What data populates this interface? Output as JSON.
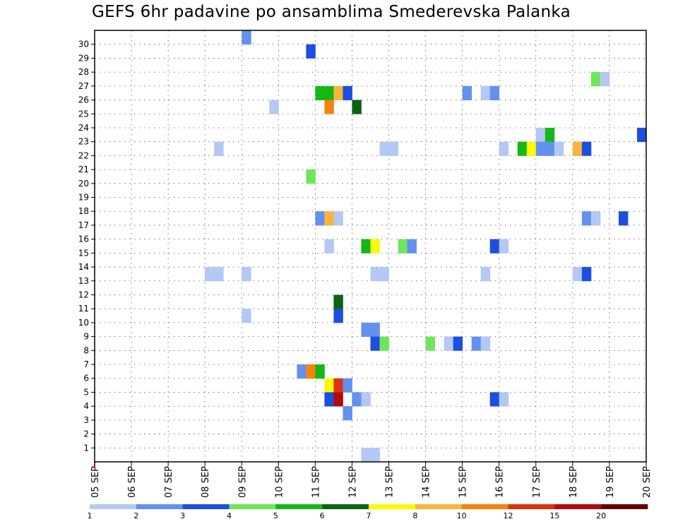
{
  "title": "GEFS 6hr padavine po ansamblima Smederevska Palanka",
  "chart_data": {
    "type": "heatmap",
    "title": "GEFS 6hr padavine po ansamblima Smederevska Palanka",
    "x_axis": {
      "labels": [
        "05 SEP",
        "06 SEP",
        "07 SEP",
        "08 SEP",
        "09 SEP",
        "10 SEP",
        "11 SEP",
        "12 SEP",
        "13 SEP",
        "14 SEP",
        "15 SEP",
        "16 SEP",
        "17 SEP",
        "18 SEP",
        "19 SEP",
        "20 SEP"
      ],
      "steps_per_day": 4,
      "num_steps": 60
    },
    "y_axis": {
      "labels": [
        1,
        2,
        3,
        4,
        5,
        6,
        7,
        8,
        9,
        10,
        11,
        12,
        13,
        14,
        15,
        16,
        17,
        18,
        19,
        20,
        21,
        22,
        23,
        24,
        25,
        26,
        27,
        28,
        29,
        30
      ],
      "num_rows": 31
    },
    "grid": true,
    "color_scale": {
      "labels": [
        "1",
        "2",
        "3",
        "4",
        "5",
        "6",
        "7",
        "8",
        "10",
        "12",
        "15",
        "20"
      ],
      "colors": [
        "#b4c8f5",
        "#6491ee",
        "#1c4ee0",
        "#6ee65a",
        "#14b814",
        "#0c6410",
        "#fafa0a",
        "#fab43c",
        "#f5820f",
        "#e0320a",
        "#b40a0a",
        "#640000"
      ]
    },
    "cells": [
      {
        "ens": 30,
        "step": 16,
        "lvl": 2
      },
      {
        "ens": 29,
        "step": 23,
        "lvl": 3
      },
      {
        "ens": 27,
        "step": 54,
        "lvl": 4
      },
      {
        "ens": 27,
        "step": 55,
        "lvl": 1
      },
      {
        "ens": 26,
        "step": 24,
        "lvl": 5
      },
      {
        "ens": 26,
        "step": 25,
        "lvl": 5
      },
      {
        "ens": 26,
        "step": 26,
        "lvl": 8
      },
      {
        "ens": 26,
        "step": 27,
        "lvl": 3
      },
      {
        "ens": 26,
        "step": 40,
        "lvl": 2
      },
      {
        "ens": 26,
        "step": 42,
        "lvl": 1
      },
      {
        "ens": 26,
        "step": 43,
        "lvl": 2
      },
      {
        "ens": 25,
        "step": 19,
        "lvl": 1
      },
      {
        "ens": 25,
        "step": 25,
        "lvl": 9
      },
      {
        "ens": 25,
        "step": 28,
        "lvl": 6
      },
      {
        "ens": 23,
        "step": 48,
        "lvl": 1
      },
      {
        "ens": 23,
        "step": 49,
        "lvl": 5
      },
      {
        "ens": 23,
        "step": 59,
        "lvl": 3
      },
      {
        "ens": 22,
        "step": 13,
        "lvl": 1
      },
      {
        "ens": 22,
        "step": 31,
        "lvl": 1
      },
      {
        "ens": 22,
        "step": 32,
        "lvl": 1
      },
      {
        "ens": 22,
        "step": 44,
        "lvl": 1
      },
      {
        "ens": 22,
        "step": 46,
        "lvl": 5
      },
      {
        "ens": 22,
        "step": 47,
        "lvl": 7
      },
      {
        "ens": 22,
        "step": 48,
        "lvl": 2
      },
      {
        "ens": 22,
        "step": 49,
        "lvl": 2
      },
      {
        "ens": 22,
        "step": 50,
        "lvl": 1
      },
      {
        "ens": 22,
        "step": 52,
        "lvl": 8
      },
      {
        "ens": 22,
        "step": 53,
        "lvl": 3
      },
      {
        "ens": 20,
        "step": 23,
        "lvl": 4
      },
      {
        "ens": 17,
        "step": 24,
        "lvl": 2
      },
      {
        "ens": 17,
        "step": 25,
        "lvl": 8
      },
      {
        "ens": 17,
        "step": 26,
        "lvl": 1
      },
      {
        "ens": 17,
        "step": 53,
        "lvl": 2
      },
      {
        "ens": 17,
        "step": 54,
        "lvl": 1
      },
      {
        "ens": 17,
        "step": 57,
        "lvl": 3
      },
      {
        "ens": 15,
        "step": 25,
        "lvl": 1
      },
      {
        "ens": 15,
        "step": 29,
        "lvl": 5
      },
      {
        "ens": 15,
        "step": 30,
        "lvl": 7
      },
      {
        "ens": 15,
        "step": 33,
        "lvl": 4
      },
      {
        "ens": 15,
        "step": 34,
        "lvl": 2
      },
      {
        "ens": 15,
        "step": 43,
        "lvl": 3
      },
      {
        "ens": 15,
        "step": 44,
        "lvl": 1
      },
      {
        "ens": 13,
        "step": 12,
        "lvl": 1
      },
      {
        "ens": 13,
        "step": 13,
        "lvl": 1
      },
      {
        "ens": 13,
        "step": 16,
        "lvl": 1
      },
      {
        "ens": 13,
        "step": 30,
        "lvl": 1
      },
      {
        "ens": 13,
        "step": 31,
        "lvl": 1
      },
      {
        "ens": 13,
        "step": 42,
        "lvl": 1
      },
      {
        "ens": 13,
        "step": 52,
        "lvl": 1
      },
      {
        "ens": 13,
        "step": 53,
        "lvl": 3
      },
      {
        "ens": 11,
        "step": 26,
        "lvl": 6
      },
      {
        "ens": 10,
        "step": 16,
        "lvl": 1
      },
      {
        "ens": 10,
        "step": 26,
        "lvl": 3
      },
      {
        "ens": 9,
        "step": 29,
        "lvl": 2
      },
      {
        "ens": 9,
        "step": 30,
        "lvl": 2
      },
      {
        "ens": 8,
        "step": 30,
        "lvl": 3
      },
      {
        "ens": 8,
        "step": 31,
        "lvl": 4
      },
      {
        "ens": 8,
        "step": 36,
        "lvl": 4
      },
      {
        "ens": 8,
        "step": 38,
        "lvl": 1
      },
      {
        "ens": 8,
        "step": 39,
        "lvl": 3
      },
      {
        "ens": 8,
        "step": 41,
        "lvl": 2
      },
      {
        "ens": 8,
        "step": 42,
        "lvl": 1
      },
      {
        "ens": 6,
        "step": 22,
        "lvl": 2
      },
      {
        "ens": 6,
        "step": 23,
        "lvl": 9
      },
      {
        "ens": 6,
        "step": 24,
        "lvl": 5
      },
      {
        "ens": 5,
        "step": 25,
        "lvl": 7
      },
      {
        "ens": 5,
        "step": 26,
        "lvl": 10
      },
      {
        "ens": 5,
        "step": 27,
        "lvl": 2
      },
      {
        "ens": 4,
        "step": 25,
        "lvl": 3
      },
      {
        "ens": 4,
        "step": 26,
        "lvl": 11
      },
      {
        "ens": 4,
        "step": 28,
        "lvl": 2
      },
      {
        "ens": 4,
        "step": 29,
        "lvl": 1
      },
      {
        "ens": 4,
        "step": 43,
        "lvl": 3
      },
      {
        "ens": 4,
        "step": 44,
        "lvl": 1
      },
      {
        "ens": 3,
        "step": 27,
        "lvl": 2
      },
      {
        "ens": 0,
        "step": 29,
        "lvl": 1
      },
      {
        "ens": 0,
        "step": 30,
        "lvl": 1
      }
    ]
  }
}
